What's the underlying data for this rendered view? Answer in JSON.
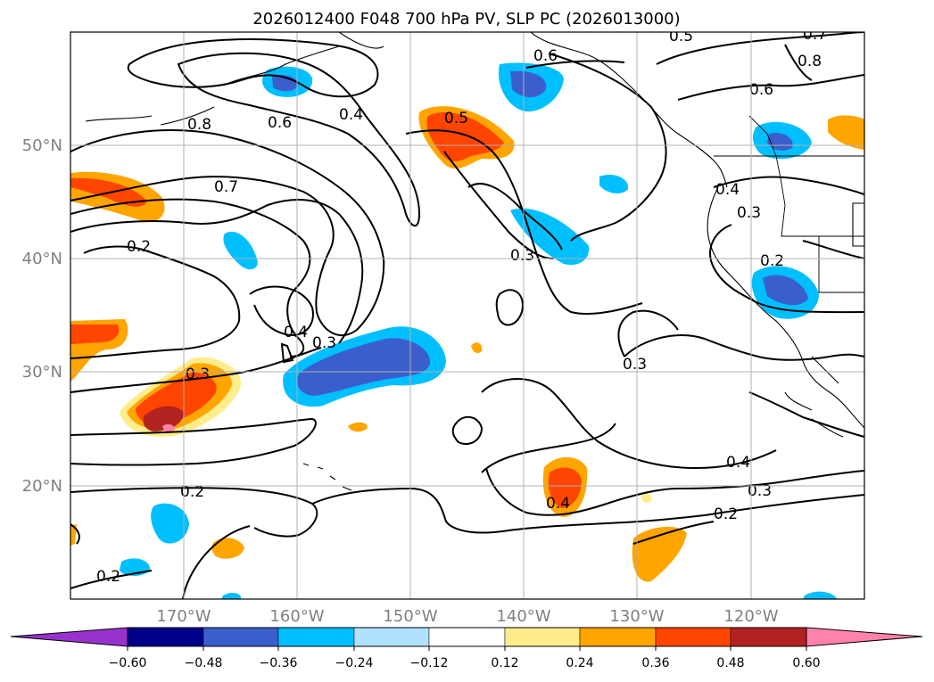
{
  "title": "2026012400 F048 700 hPa PV, SLP PC (2026013000)",
  "map": {
    "extent": {
      "lon_min": -180,
      "lon_max": -110,
      "lat_min": 10,
      "lat_max": 60
    },
    "lat_labels": [
      "20°N",
      "30°N",
      "40°N",
      "50°N"
    ],
    "lon_labels": [
      "170°W",
      "160°W",
      "150°W",
      "140°W",
      "130°W",
      "120°W"
    ],
    "gridlines": true
  },
  "contour_labels": [
    "0.8",
    "0.6",
    "0.4",
    "0.5",
    "0.6",
    "0.7",
    "0.8",
    "0.6",
    "0.7",
    "0.2",
    "0.4",
    "0.3",
    "0.3",
    "0.4",
    "0.3",
    "0.2",
    "0.3",
    "0.3",
    "0.2",
    "0.4",
    "0.3",
    "0.2",
    "0.4",
    "0.2",
    "0.5"
  ],
  "colorbar": {
    "ticks": [
      "−0.60",
      "−0.48",
      "−0.36",
      "−0.24",
      "−0.12",
      "0.12",
      "0.24",
      "0.36",
      "0.48",
      "0.60"
    ],
    "colors": {
      "neg_extend": "#9932cc",
      "neg_060": "#00008b",
      "neg_048": "#3a5fcd",
      "neg_036": "#00bfff",
      "neg_024": "#b0e2ff",
      "neutral": "#ffffff",
      "pos_012": "#ffec8b",
      "pos_024": "#ffa500",
      "pos_036": "#ff4500",
      "pos_048": "#b22222",
      "pos_extend": "#ff82ab"
    }
  }
}
